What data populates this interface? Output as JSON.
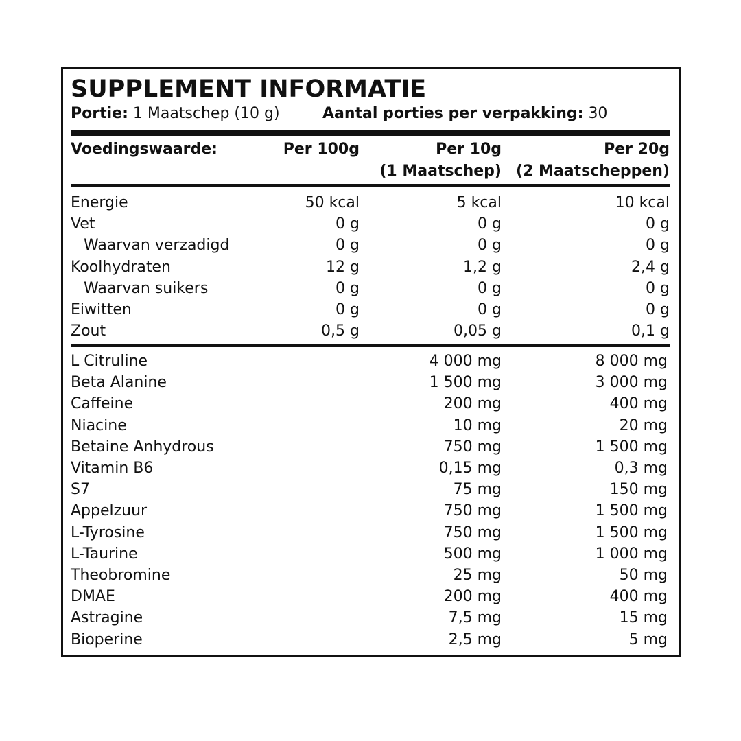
{
  "header": {
    "title": "SUPPLEMENT INFORMATIE",
    "portion_label": "Portie:",
    "portion_value": "1 Maatschep (10 g)",
    "servings_label": "Aantal porties per verpakking:",
    "servings_value": "30"
  },
  "table": {
    "columns": [
      [
        "Voedingswaarde:"
      ],
      [
        "Per 100g"
      ],
      [
        "Per 10g",
        "(1 Maatschep)"
      ],
      [
        "Per 20g",
        "(2 Maatscheppen)"
      ]
    ],
    "nutrition": [
      [
        "Energie",
        "50 kcal",
        "5 kcal",
        "10 kcal"
      ],
      [
        "Vet",
        "0 g",
        "0 g",
        "0 g"
      ],
      [
        "Waarvan verzadigd",
        "0 g",
        "0 g",
        "0 g"
      ],
      [
        "Koolhydraten",
        "12 g",
        "1,2 g",
        "2,4 g"
      ],
      [
        "Waarvan suikers",
        "0 g",
        "0 g",
        "0 g"
      ],
      [
        "Eiwitten",
        "0 g",
        "0 g",
        "0 g"
      ],
      [
        "Zout",
        "0,5 g",
        "0,05 g",
        "0,1 g"
      ]
    ],
    "ingredients": [
      [
        "L Citruline",
        "4 000 mg",
        "8 000 mg"
      ],
      [
        "Beta Alanine",
        "1 500 mg",
        "3 000 mg"
      ],
      [
        "Caffeine",
        "200 mg",
        "400 mg"
      ],
      [
        "Niacine",
        "10 mg",
        "20 mg"
      ],
      [
        "Betaine Anhydrous",
        "750 mg",
        "1 500 mg"
      ],
      [
        "Vitamin B6",
        "0,15 mg",
        "0,3 mg"
      ],
      [
        "S7",
        "75 mg",
        "150 mg"
      ],
      [
        "Appelzuur",
        "750 mg",
        "1 500 mg"
      ],
      [
        "L-Tyrosine",
        "750 mg",
        "1 500 mg"
      ],
      [
        "L-Taurine",
        "500 mg",
        "1 000 mg"
      ],
      [
        "Theobromine",
        "25 mg",
        "50 mg"
      ],
      [
        "DMAE",
        "200 mg",
        "400 mg"
      ],
      [
        "Astragine",
        "7,5 mg",
        "15 mg"
      ],
      [
        "Bioperine",
        "2,5 mg",
        "5 mg"
      ]
    ]
  }
}
